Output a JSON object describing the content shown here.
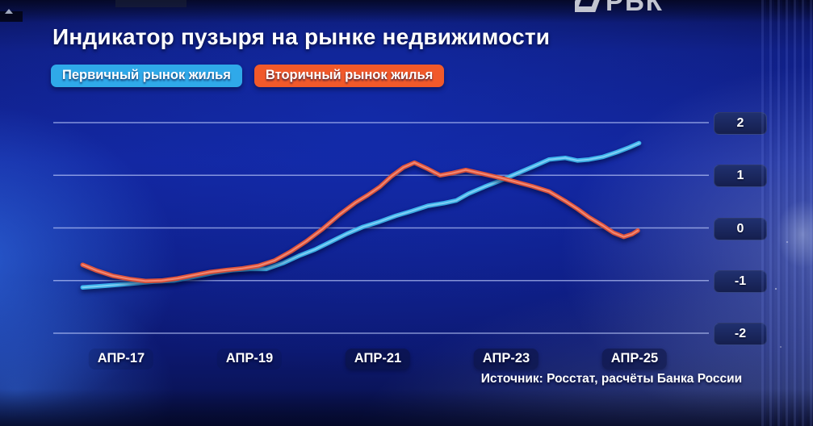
{
  "logo": {
    "text": "РБК"
  },
  "header": {
    "title": "Индикатор пузыря на рынке недвижимости"
  },
  "legend": [
    {
      "label": "Первичный рынок жилья",
      "color": "#2fa9e9"
    },
    {
      "label": "Вторичный рынок жилья",
      "color": "#f1592a"
    }
  ],
  "source_note": "Источник: Росстат, расчёты Банка России",
  "chart_data": {
    "type": "line",
    "title": "Индикатор пузыря на рынке недвижимости",
    "xlabel": "",
    "ylabel": "",
    "grid": "horizontal",
    "legend_position": "top-left",
    "y_ticks": [
      2,
      1,
      0,
      -1,
      -2
    ],
    "ylim": [
      -2.2,
      2.0
    ],
    "x_ticks": [
      {
        "label": "АПР-17",
        "t": 2017.25,
        "boxed": false
      },
      {
        "label": "АПР-19",
        "t": 2019.25,
        "boxed": false
      },
      {
        "label": "АПР-21",
        "t": 2021.25,
        "boxed": true
      },
      {
        "label": "АПР-23",
        "t": 2023.25,
        "boxed": true
      },
      {
        "label": "АПР-25",
        "t": 2025.25,
        "boxed": true
      }
    ],
    "xlim": [
      2016.2,
      2026.4
    ],
    "series": [
      {
        "name": "Первичный рынок жилья",
        "color": "#3fb9f2",
        "highlight": "#a6e2ff",
        "points": [
          [
            2016.65,
            -1.13
          ],
          [
            2017.0,
            -1.1
          ],
          [
            2017.38,
            -1.06
          ],
          [
            2017.75,
            -1.02
          ],
          [
            2018.07,
            -1.0
          ],
          [
            2018.38,
            -0.93
          ],
          [
            2018.7,
            -0.85
          ],
          [
            2019.01,
            -0.8
          ],
          [
            2019.26,
            -0.78
          ],
          [
            2019.51,
            -0.78
          ],
          [
            2019.77,
            -0.67
          ],
          [
            2020.02,
            -0.53
          ],
          [
            2020.27,
            -0.41
          ],
          [
            2020.52,
            -0.26
          ],
          [
            2020.77,
            -0.11
          ],
          [
            2021.02,
            0.02
          ],
          [
            2021.28,
            0.12
          ],
          [
            2021.53,
            0.23
          ],
          [
            2021.78,
            0.32
          ],
          [
            2022.03,
            0.42
          ],
          [
            2022.28,
            0.47
          ],
          [
            2022.47,
            0.52
          ],
          [
            2022.66,
            0.65
          ],
          [
            2022.91,
            0.78
          ],
          [
            2023.16,
            0.9
          ],
          [
            2023.41,
            1.03
          ],
          [
            2023.66,
            1.16
          ],
          [
            2023.92,
            1.3
          ],
          [
            2024.17,
            1.33
          ],
          [
            2024.36,
            1.28
          ],
          [
            2024.54,
            1.3
          ],
          [
            2024.76,
            1.35
          ],
          [
            2024.98,
            1.44
          ],
          [
            2025.17,
            1.53
          ],
          [
            2025.32,
            1.61
          ]
        ]
      },
      {
        "name": "Вторичный рынок жилья",
        "color": "#e8563c",
        "highlight": "#ffa892",
        "points": [
          [
            2016.65,
            -0.7
          ],
          [
            2016.87,
            -0.81
          ],
          [
            2017.12,
            -0.91
          ],
          [
            2017.38,
            -0.97
          ],
          [
            2017.63,
            -1.01
          ],
          [
            2017.88,
            -1.0
          ],
          [
            2018.13,
            -0.96
          ],
          [
            2018.38,
            -0.9
          ],
          [
            2018.63,
            -0.84
          ],
          [
            2018.89,
            -0.8
          ],
          [
            2019.14,
            -0.77
          ],
          [
            2019.39,
            -0.72
          ],
          [
            2019.64,
            -0.62
          ],
          [
            2019.89,
            -0.45
          ],
          [
            2020.14,
            -0.25
          ],
          [
            2020.39,
            -0.02
          ],
          [
            2020.65,
            0.25
          ],
          [
            2020.9,
            0.48
          ],
          [
            2021.09,
            0.62
          ],
          [
            2021.28,
            0.78
          ],
          [
            2021.46,
            0.98
          ],
          [
            2021.65,
            1.15
          ],
          [
            2021.82,
            1.24
          ],
          [
            2022.03,
            1.12
          ],
          [
            2022.22,
            1.0
          ],
          [
            2022.41,
            1.04
          ],
          [
            2022.62,
            1.1
          ],
          [
            2022.91,
            1.02
          ],
          [
            2023.16,
            0.95
          ],
          [
            2023.41,
            0.87
          ],
          [
            2023.66,
            0.79
          ],
          [
            2023.92,
            0.69
          ],
          [
            2024.17,
            0.51
          ],
          [
            2024.36,
            0.36
          ],
          [
            2024.54,
            0.2
          ],
          [
            2024.76,
            0.04
          ],
          [
            2024.92,
            -0.09
          ],
          [
            2025.08,
            -0.17
          ],
          [
            2025.21,
            -0.12
          ],
          [
            2025.3,
            -0.05
          ]
        ]
      }
    ]
  }
}
